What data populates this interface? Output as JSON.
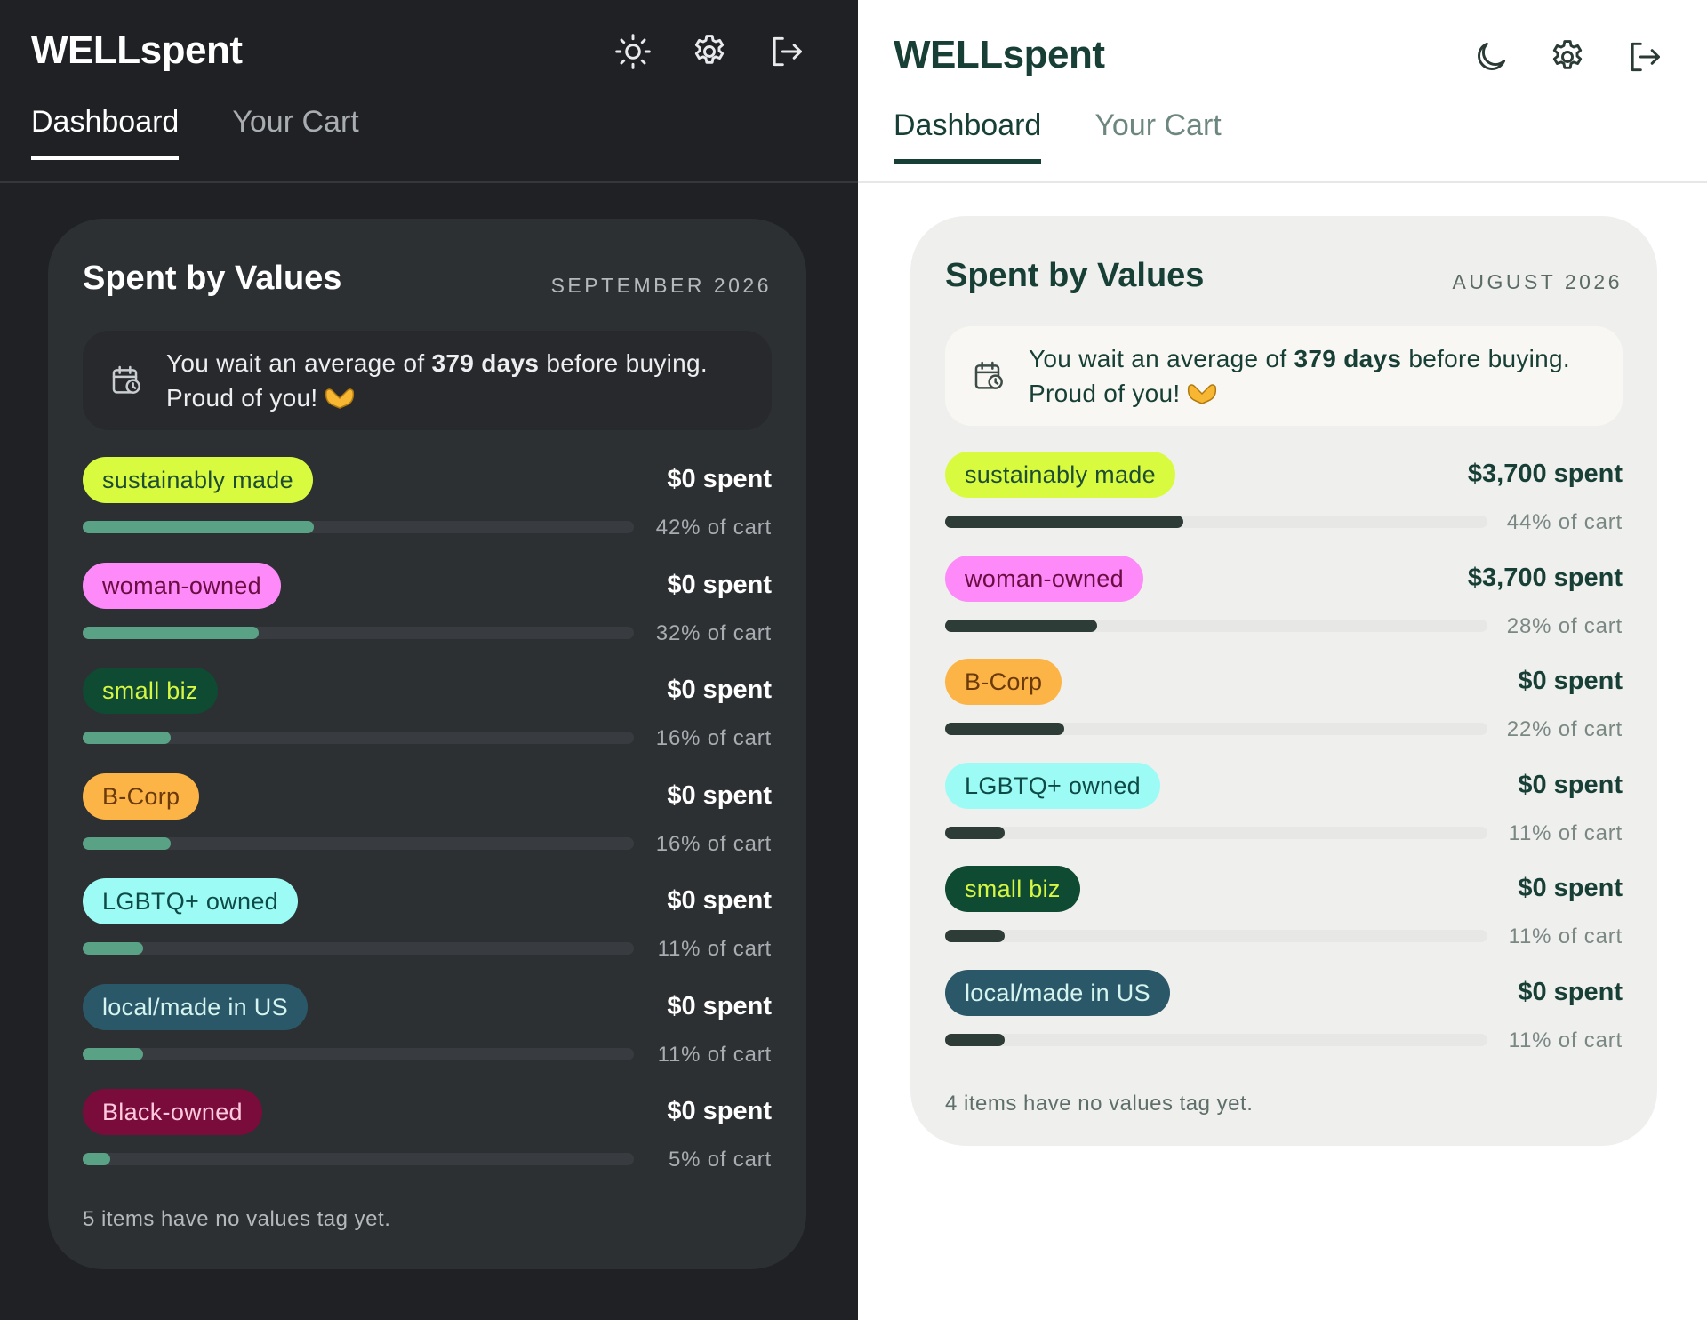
{
  "colors": {
    "dark_bg": "#1f2124",
    "dark_card": "#2d3033",
    "light_bg": "#ffffff",
    "light_card": "#efefed",
    "dark_bar_fill": "#5aa285",
    "light_bar_fill": "#2d3c37",
    "brand_green": "#173f35"
  },
  "dark": {
    "app_title": "WELLspent",
    "theme_toggle_icon": "sun-icon",
    "settings_icon": "gear-icon",
    "logout_icon": "logout-icon",
    "tabs": [
      {
        "label": "Dashboard",
        "active": true
      },
      {
        "label": "Your Cart",
        "active": false
      }
    ],
    "card": {
      "title": "Spent by Values",
      "month": "SEPTEMBER 2026",
      "notice": {
        "icon": "calendar-clock-icon",
        "prefix": "You wait an average of ",
        "highlight": "379 days",
        "suffix": " before buying.",
        "line2": "Proud of you!"
      },
      "rows": [
        {
          "tag": "sustainably made",
          "tag_bg": "#d9fb3f",
          "tag_fg": "#1e4d34",
          "spent": "$0 spent",
          "pct_label": "42% of cart",
          "fraction": 0.42
        },
        {
          "tag": "woman-owned",
          "tag_bg": "#fd8af8",
          "tag_fg": "#6a0d43",
          "spent": "$0 spent",
          "pct_label": "32% of cart",
          "fraction": 0.32
        },
        {
          "tag": "small biz",
          "tag_bg": "#0f4a33",
          "tag_fg": "#d6f644",
          "spent": "$0 spent",
          "pct_label": "16% of cart",
          "fraction": 0.16
        },
        {
          "tag": "B-Corp",
          "tag_bg": "#fdb447",
          "tag_fg": "#6b3a0a",
          "spent": "$0 spent",
          "pct_label": "16% of cart",
          "fraction": 0.16
        },
        {
          "tag": "LGBTQ+ owned",
          "tag_bg": "#9dfbf6",
          "tag_fg": "#0e4b47",
          "spent": "$0 spent",
          "pct_label": "11% of cart",
          "fraction": 0.11
        },
        {
          "tag": "local/made in US",
          "tag_bg": "#2a5868",
          "tag_fg": "#d5f4ef",
          "spent": "$0 spent",
          "pct_label": "11% of cart",
          "fraction": 0.11
        },
        {
          "tag": "Black-owned",
          "tag_bg": "#7a0c3c",
          "tag_fg": "#ffc9dd",
          "spent": "$0 spent",
          "pct_label": "5% of cart",
          "fraction": 0.05
        }
      ],
      "footer": "5 items have no values tag yet."
    }
  },
  "light": {
    "app_title": "WELLspent",
    "theme_toggle_icon": "moon-icon",
    "settings_icon": "gear-icon",
    "logout_icon": "logout-icon",
    "tabs": [
      {
        "label": "Dashboard",
        "active": true
      },
      {
        "label": "Your Cart",
        "active": false
      }
    ],
    "card": {
      "title": "Spent by Values",
      "month": "AUGUST 2026",
      "notice": {
        "icon": "calendar-clock-icon",
        "prefix": "You wait an average of ",
        "highlight": "379 days",
        "suffix": " before buying.",
        "line2": "Proud of you!"
      },
      "rows": [
        {
          "tag": "sustainably made",
          "tag_bg": "#d9fb3f",
          "tag_fg": "#1e4d34",
          "spent": "$3,700 spent",
          "pct_label": "44% of cart",
          "fraction": 0.44
        },
        {
          "tag": "woman-owned",
          "tag_bg": "#fd8af8",
          "tag_fg": "#6a0d43",
          "spent": "$3,700 spent",
          "pct_label": "28% of cart",
          "fraction": 0.28
        },
        {
          "tag": "B-Corp",
          "tag_bg": "#fdb447",
          "tag_fg": "#6b3a0a",
          "spent": "$0 spent",
          "pct_label": "22% of cart",
          "fraction": 0.22
        },
        {
          "tag": "LGBTQ+ owned",
          "tag_bg": "#9dfbf6",
          "tag_fg": "#0e4b47",
          "spent": "$0 spent",
          "pct_label": "11% of cart",
          "fraction": 0.11
        },
        {
          "tag": "small biz",
          "tag_bg": "#0f4a33",
          "tag_fg": "#d6f644",
          "spent": "$0 spent",
          "pct_label": "11% of cart",
          "fraction": 0.11
        },
        {
          "tag": "local/made in US",
          "tag_bg": "#2a5868",
          "tag_fg": "#d5f4ef",
          "spent": "$0 spent",
          "pct_label": "11% of cart",
          "fraction": 0.11
        }
      ],
      "footer": "4 items have no values tag yet."
    }
  }
}
